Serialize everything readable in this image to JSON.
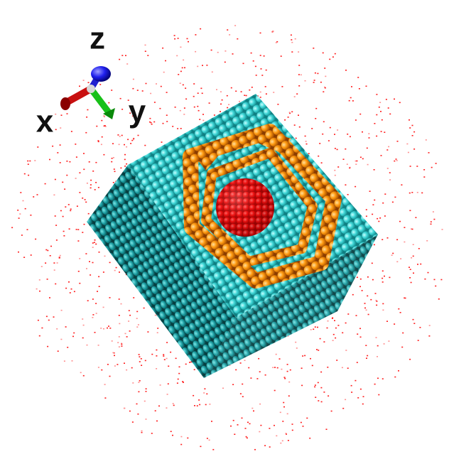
{
  "axes": {
    "z": "z",
    "x": "x",
    "y": "y"
  }
}
